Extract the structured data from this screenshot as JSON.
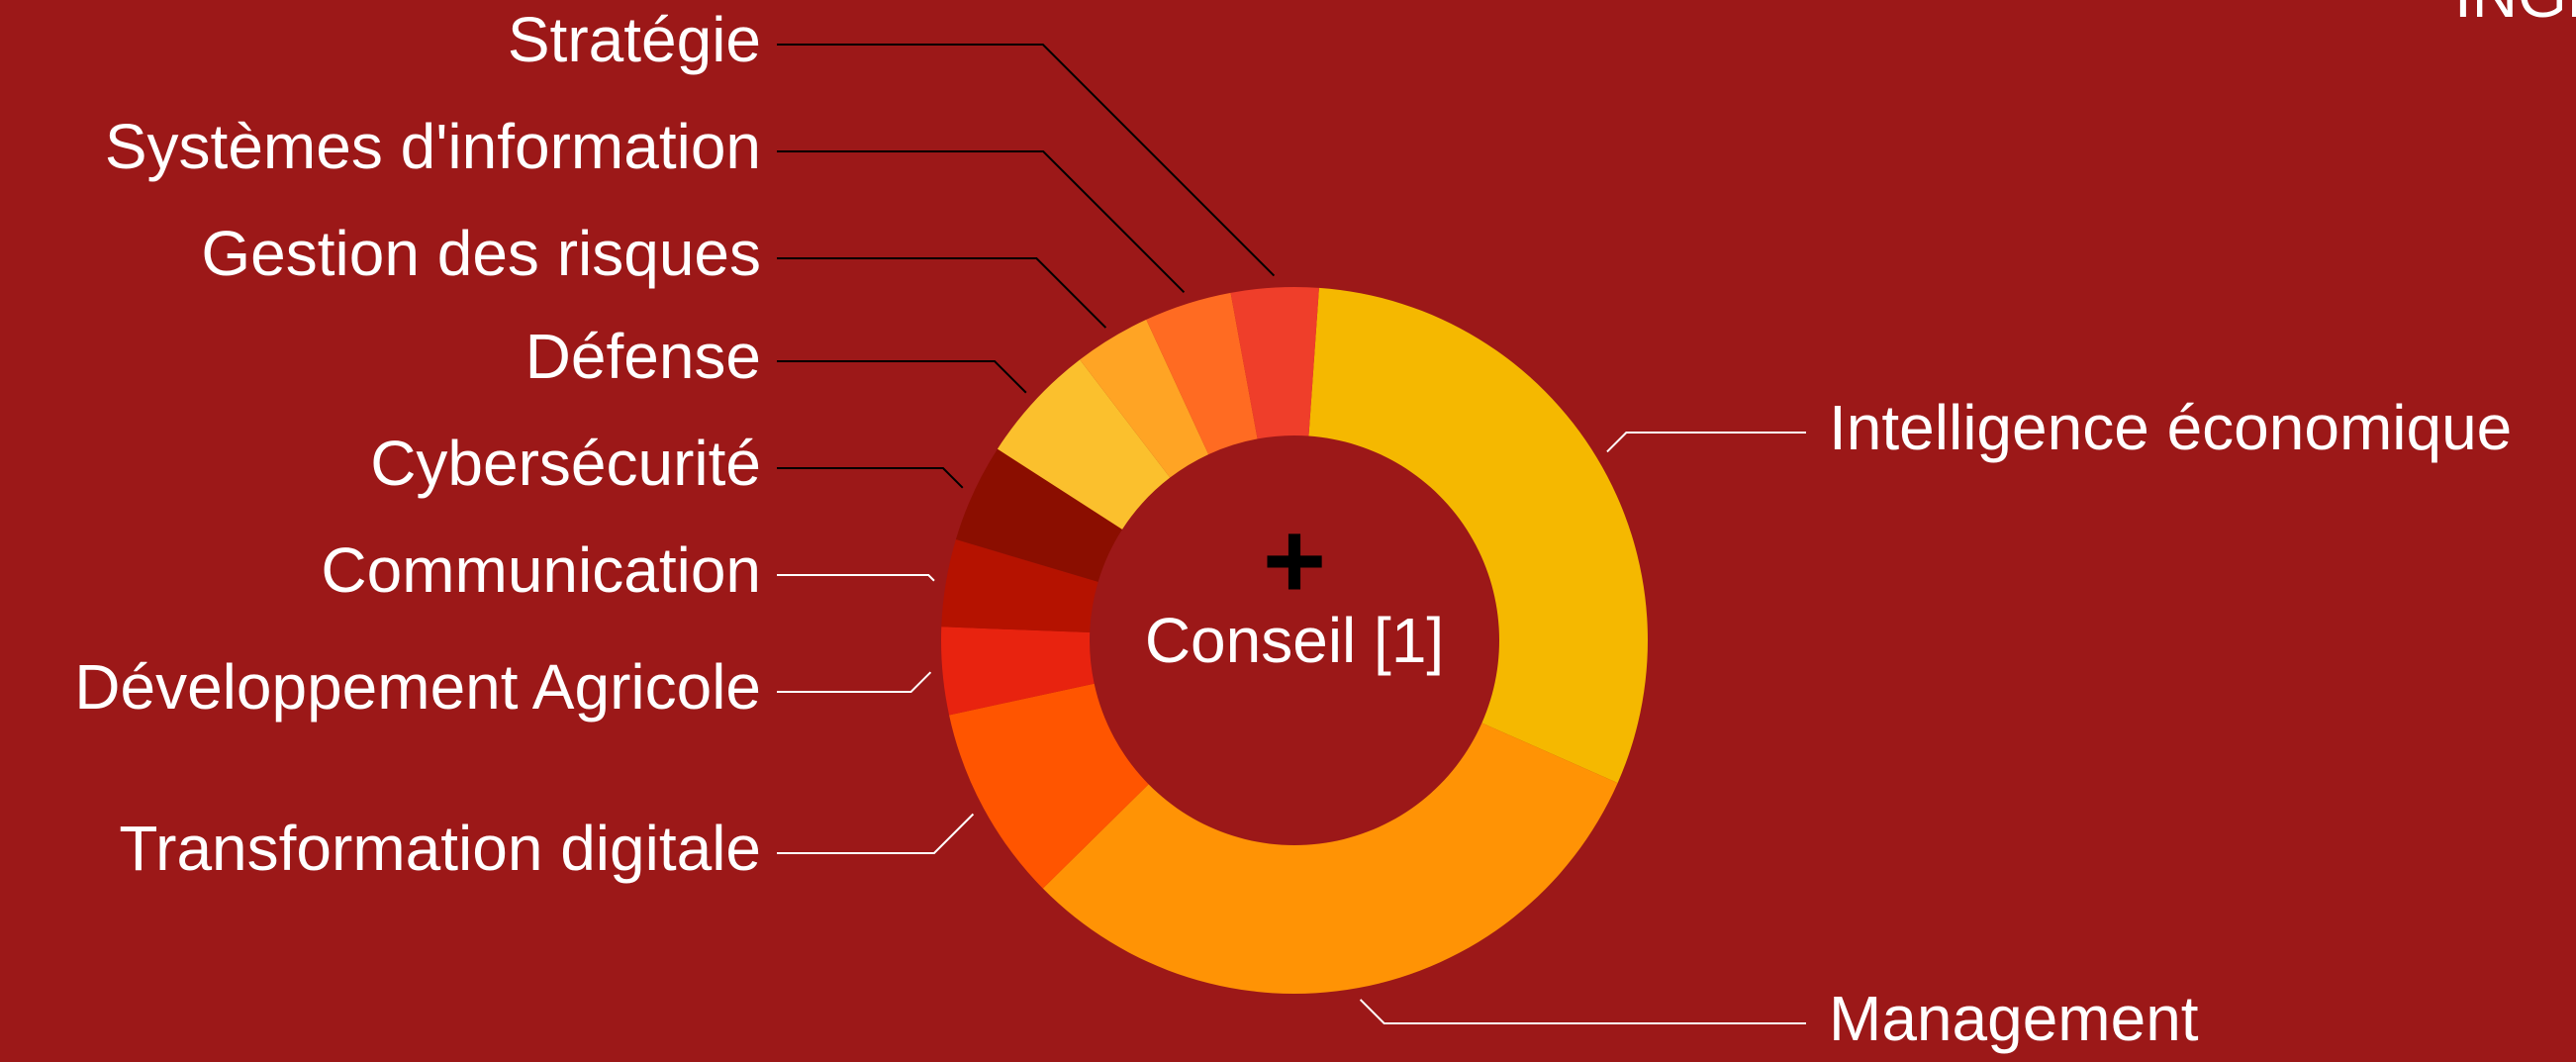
{
  "chart_data": {
    "type": "donut",
    "center_label": "Conseil [1]",
    "center_icon": "+",
    "corner_label": "INGE",
    "start_angle": 4,
    "categories": [
      "Intelligence économique",
      "Management",
      "Transformation digitale",
      "Développement Agricole",
      "Communication",
      "Cybersécurité",
      "Défense",
      "Gestion des risques",
      "Systèmes d'information",
      "Stratégie"
    ],
    "values": [
      30.5,
      31,
      9,
      4,
      4,
      4.5,
      5.5,
      3.5,
      4,
      4
    ],
    "colors": [
      "#f5b800",
      "#ff9305",
      "#ff5500",
      "#e8230f",
      "#b51200",
      "#8b0e00",
      "#fbc02d",
      "#ffa424",
      "#ff6b22",
      "#ef3e2a"
    ],
    "leader_colors": [
      "#ffffff",
      "#ffffff",
      "#ffffff",
      "#ffffff",
      "#ffffff",
      "#000000",
      "#000000",
      "#000000",
      "#000000",
      "#000000"
    ]
  }
}
